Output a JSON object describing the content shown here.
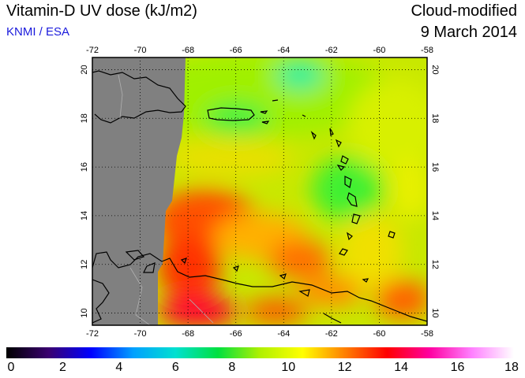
{
  "header": {
    "title": "Vitamin-D UV dose (kJ/m2)",
    "source": "KNMI / ESA",
    "product": "Cloud-modified",
    "date": "9 March 2014"
  },
  "map": {
    "lon_range": [
      -72,
      -58
    ],
    "lat_range": [
      9.5,
      20.5
    ],
    "lon_ticks": [
      "-72",
      "-70",
      "-68",
      "-66",
      "-64",
      "-62",
      "-60",
      "-58"
    ],
    "lat_ticks": [
      "20",
      "18",
      "16",
      "14",
      "12",
      "10"
    ],
    "no_data_color": "#808080",
    "coastline_color": "#000000",
    "grid": "dotted"
  },
  "colorbar": {
    "min": 0,
    "max": 18,
    "labels": [
      "0",
      "2",
      "4",
      "6",
      "8",
      "10",
      "12",
      "14",
      "16",
      "18"
    ],
    "stops": [
      "#000000",
      "#3a0070",
      "#0000ff",
      "#00a0ff",
      "#00e0d0",
      "#00e040",
      "#b0f000",
      "#ffff00",
      "#ff8000",
      "#ff0000",
      "#ff00a0",
      "#ff80ff",
      "#ffffff"
    ]
  }
}
